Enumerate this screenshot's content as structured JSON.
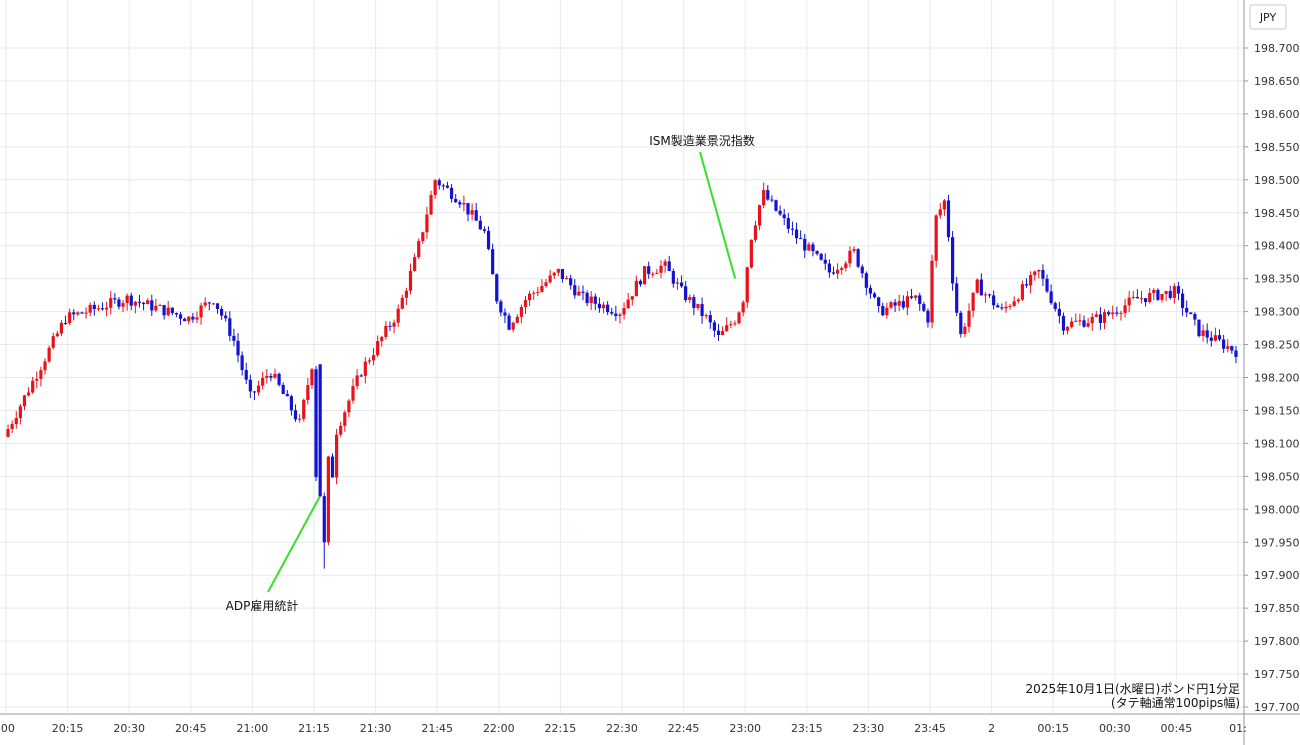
{
  "chart_data": {
    "type": "candlestick",
    "currency_label": "JPY",
    "caption_line1": "2025年10月1日(水曜日)ポンド円1分足",
    "caption_line2": "(タテ軸通常100pips幅)",
    "y_axis": {
      "min": 197.7,
      "max": 198.7,
      "ticks": [
        "198.700",
        "198.650",
        "198.600",
        "198.550",
        "198.500",
        "198.450",
        "198.400",
        "198.350",
        "198.300",
        "198.250",
        "198.200",
        "198.150",
        "198.100",
        "198.050",
        "198.000",
        "197.950",
        "197.900",
        "197.850",
        "197.800",
        "197.750",
        "197.700"
      ],
      "grid": true
    },
    "x_axis": {
      "ticks": [
        ":00",
        "20:15",
        "20:30",
        "20:45",
        "21:00",
        "21:15",
        "21:30",
        "21:45",
        "22:00",
        "22:15",
        "22:30",
        "22:45",
        "23:00",
        "23:15",
        "23:30",
        "23:45",
        "2",
        "00:15",
        "00:30",
        "00:45",
        "01:"
      ],
      "grid": true
    },
    "colors": {
      "up": "#e8121b",
      "down": "#1212d0",
      "annotation_line": "#33e02a",
      "grid": "#e3eaee"
    },
    "annotations": [
      {
        "text": "ADP雇用統計",
        "time": "21:15",
        "price": 198.02
      },
      {
        "text": "ISM製造業景況指数",
        "time": "23:00",
        "price": 198.35
      }
    ],
    "series": [
      [
        20.0,
        198.11
      ],
      [
        20.25,
        198.29
      ],
      [
        20.5,
        198.32
      ],
      [
        20.75,
        198.29
      ],
      [
        20.85,
        198.32
      ],
      [
        20.93,
        198.26
      ],
      [
        21.0,
        198.17
      ],
      [
        21.08,
        198.21
      ],
      [
        21.2,
        198.13
      ],
      [
        21.25,
        198.22
      ],
      [
        21.27,
        198.02
      ],
      [
        21.3,
        197.92
      ],
      [
        21.35,
        198.12
      ],
      [
        21.45,
        198.21
      ],
      [
        21.6,
        198.3
      ],
      [
        21.67,
        198.38
      ],
      [
        21.75,
        198.5
      ],
      [
        21.85,
        198.47
      ],
      [
        21.95,
        198.42
      ],
      [
        22.0,
        198.32
      ],
      [
        22.05,
        198.28
      ],
      [
        22.12,
        198.32
      ],
      [
        22.25,
        198.36
      ],
      [
        22.35,
        198.32
      ],
      [
        22.5,
        198.3
      ],
      [
        22.6,
        198.36
      ],
      [
        22.68,
        198.37
      ],
      [
        22.75,
        198.33
      ],
      [
        22.85,
        198.29
      ],
      [
        22.9,
        198.26
      ],
      [
        22.97,
        198.29
      ],
      [
        23.0,
        198.32
      ],
      [
        23.03,
        198.41
      ],
      [
        23.08,
        198.48
      ],
      [
        23.2,
        198.42
      ],
      [
        23.35,
        198.36
      ],
      [
        23.45,
        198.39
      ],
      [
        23.55,
        198.3
      ],
      [
        23.7,
        198.32
      ],
      [
        23.75,
        198.29
      ],
      [
        23.78,
        198.44
      ],
      [
        23.82,
        198.47
      ],
      [
        23.85,
        198.35
      ],
      [
        23.88,
        198.26
      ],
      [
        23.95,
        198.34
      ],
      [
        24.05,
        198.3
      ],
      [
        24.2,
        198.36
      ],
      [
        24.3,
        198.28
      ],
      [
        24.45,
        198.29
      ],
      [
        24.6,
        198.32
      ],
      [
        24.75,
        198.33
      ],
      [
        24.85,
        198.27
      ],
      [
        24.95,
        198.25
      ],
      [
        25.0,
        198.24
      ]
    ]
  }
}
